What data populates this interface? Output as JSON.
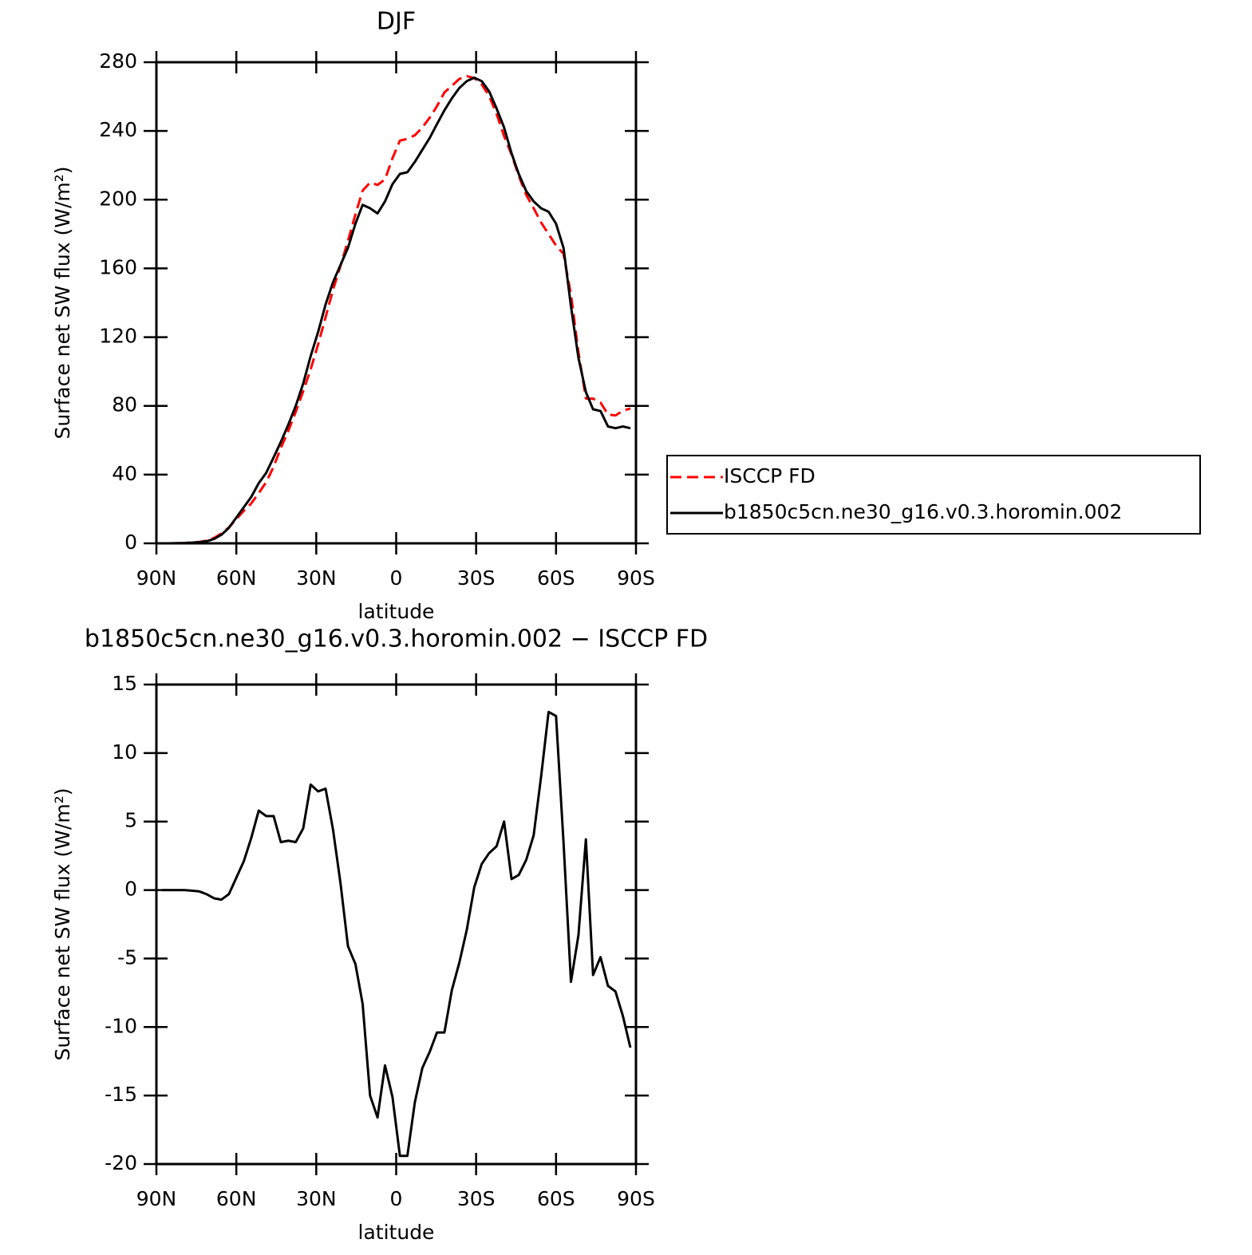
{
  "chart_data": [
    {
      "type": "line",
      "title": "DJF",
      "xlabel": "latitude",
      "ylabel": "Surface net SW flux (W/m²)",
      "x": [
        87.9,
        85.1,
        82.3,
        79.5,
        76.7,
        73.9,
        71.2,
        68.4,
        65.6,
        62.8,
        60.0,
        57.2,
        54.4,
        51.6,
        48.8,
        46.0,
        43.3,
        40.5,
        37.7,
        34.9,
        32.1,
        29.3,
        26.5,
        23.7,
        20.9,
        18.1,
        15.3,
        12.6,
        9.8,
        7.0,
        4.2,
        1.4,
        -1.4,
        -4.2,
        -7.0,
        -9.8,
        -12.6,
        -15.3,
        -18.1,
        -20.9,
        -23.7,
        -26.5,
        -29.3,
        -32.1,
        -34.9,
        -37.7,
        -40.5,
        -43.3,
        -46.0,
        -48.8,
        -51.6,
        -54.4,
        -57.2,
        -60.0,
        -62.8,
        -65.6,
        -68.4,
        -71.2,
        -73.9,
        -76.7,
        -79.5,
        -82.3,
        -85.1,
        -87.9
      ],
      "series": [
        {
          "name": "ISCCP FD",
          "color": "#ff0000",
          "linestyle": "dashed",
          "values": [
            0,
            0,
            0.1,
            0.2,
            0.45,
            0.8,
            1.5,
            3.1,
            5.7,
            9.3,
            14.1,
            18.9,
            23.2,
            29.2,
            35.6,
            44.6,
            55.5,
            65.4,
            76.5,
            88.5,
            101.3,
            115.8,
            131.6,
            147.6,
            161.5,
            176.1,
            191.4,
            205.3,
            210,
            208.6,
            211.8,
            224.1,
            234.4,
            235.4,
            237.5,
            242,
            247.8,
            254.4,
            262.4,
            266.3,
            270.3,
            271.9,
            270.8,
            267.1,
            260.3,
            249.8,
            237,
            226.2,
            213.9,
            202.8,
            195,
            186.7,
            180,
            173.3,
            168.5,
            144.7,
            111.3,
            84.3,
            84.2,
            81.9,
            75,
            74.4,
            77.2,
            78.5
          ]
        },
        {
          "name": "b1850c5cn.ne30_g16.v0.3.horomin.002",
          "color": "#000000",
          "linestyle": "solid",
          "values": [
            0,
            0,
            0.1,
            0.2,
            0.4,
            0.7,
            1.2,
            2.5,
            5,
            9,
            15,
            21,
            27,
            35,
            41,
            50,
            59,
            69,
            80,
            93,
            109,
            123,
            139,
            152,
            162,
            172,
            186,
            197,
            195,
            192,
            199,
            209,
            215,
            216,
            222,
            229,
            236,
            244,
            252,
            259,
            265,
            269,
            271,
            269,
            263,
            253,
            242,
            227,
            215,
            205,
            199,
            195,
            193,
            186,
            172,
            138,
            108,
            88,
            78,
            77,
            68,
            67,
            68,
            67
          ]
        }
      ],
      "xlim": [
        90,
        -90
      ],
      "xticks": [
        {
          "value": 90,
          "label": "90N"
        },
        {
          "value": 60,
          "label": "60N"
        },
        {
          "value": 30,
          "label": "30N"
        },
        0,
        {
          "value": -30,
          "label": "30S"
        },
        {
          "value": -60,
          "label": "60S"
        },
        {
          "value": -90,
          "label": "90S"
        }
      ],
      "ylim": [
        0,
        280
      ],
      "yticks": [
        0,
        40,
        80,
        120,
        160,
        200,
        240,
        280
      ],
      "legend": "right"
    },
    {
      "type": "line",
      "title": "b1850c5cn.ne30_g16.v0.3.horomin.002 − ISCCP FD",
      "xlabel": "latitude",
      "ylabel": "Surface net SW flux (W/m²)",
      "x": [
        87.9,
        85.1,
        82.3,
        79.5,
        76.7,
        73.9,
        71.2,
        68.4,
        65.6,
        62.8,
        60.0,
        57.2,
        54.4,
        51.6,
        48.8,
        46.0,
        43.3,
        40.5,
        37.7,
        34.9,
        32.1,
        29.3,
        26.5,
        23.7,
        20.9,
        18.1,
        15.3,
        12.6,
        9.8,
        7.0,
        4.2,
        1.4,
        -1.4,
        -4.2,
        -7.0,
        -9.8,
        -12.6,
        -15.3,
        -18.1,
        -20.9,
        -23.7,
        -26.5,
        -29.3,
        -32.1,
        -34.9,
        -37.7,
        -40.5,
        -43.3,
        -46.0,
        -48.8,
        -51.6,
        -54.4,
        -57.2,
        -60.0,
        -62.8,
        -65.6,
        -68.4,
        -71.2,
        -73.9,
        -76.7,
        -79.5,
        -82.3,
        -85.1,
        -87.9
      ],
      "color": "#000000",
      "values": [
        0,
        0,
        0,
        0,
        -0.05,
        -0.1,
        -0.3,
        -0.6,
        -0.7,
        -0.3,
        0.9,
        2.1,
        3.8,
        5.8,
        5.4,
        5.4,
        3.5,
        3.6,
        3.5,
        4.5,
        7.7,
        7.2,
        7.4,
        4.4,
        0.5,
        -4.1,
        -5.4,
        -8.3,
        -15,
        -16.6,
        -12.8,
        -15.1,
        -19.4,
        -19.4,
        -15.5,
        -13,
        -11.8,
        -10.4,
        -10.4,
        -7.3,
        -5.3,
        -2.9,
        0.2,
        1.9,
        2.7,
        3.2,
        5.0,
        0.8,
        1.1,
        2.2,
        4.0,
        8.3,
        13.0,
        12.7,
        3.5,
        -6.7,
        -3.3,
        3.7,
        -6.2,
        -4.9,
        -7.0,
        -7.4,
        -9.2,
        -11.5
      ],
      "xlim": [
        90,
        -90
      ],
      "xticks": [
        {
          "value": 90,
          "label": "90N"
        },
        {
          "value": 60,
          "label": "60N"
        },
        {
          "value": 30,
          "label": "30N"
        },
        0,
        {
          "value": -30,
          "label": "30S"
        },
        {
          "value": -60,
          "label": "60S"
        },
        {
          "value": -90,
          "label": "90S"
        }
      ],
      "ylim": [
        -20,
        15
      ],
      "yticks": [
        -20,
        -15,
        -10,
        -5,
        0,
        5,
        10,
        15
      ]
    }
  ]
}
